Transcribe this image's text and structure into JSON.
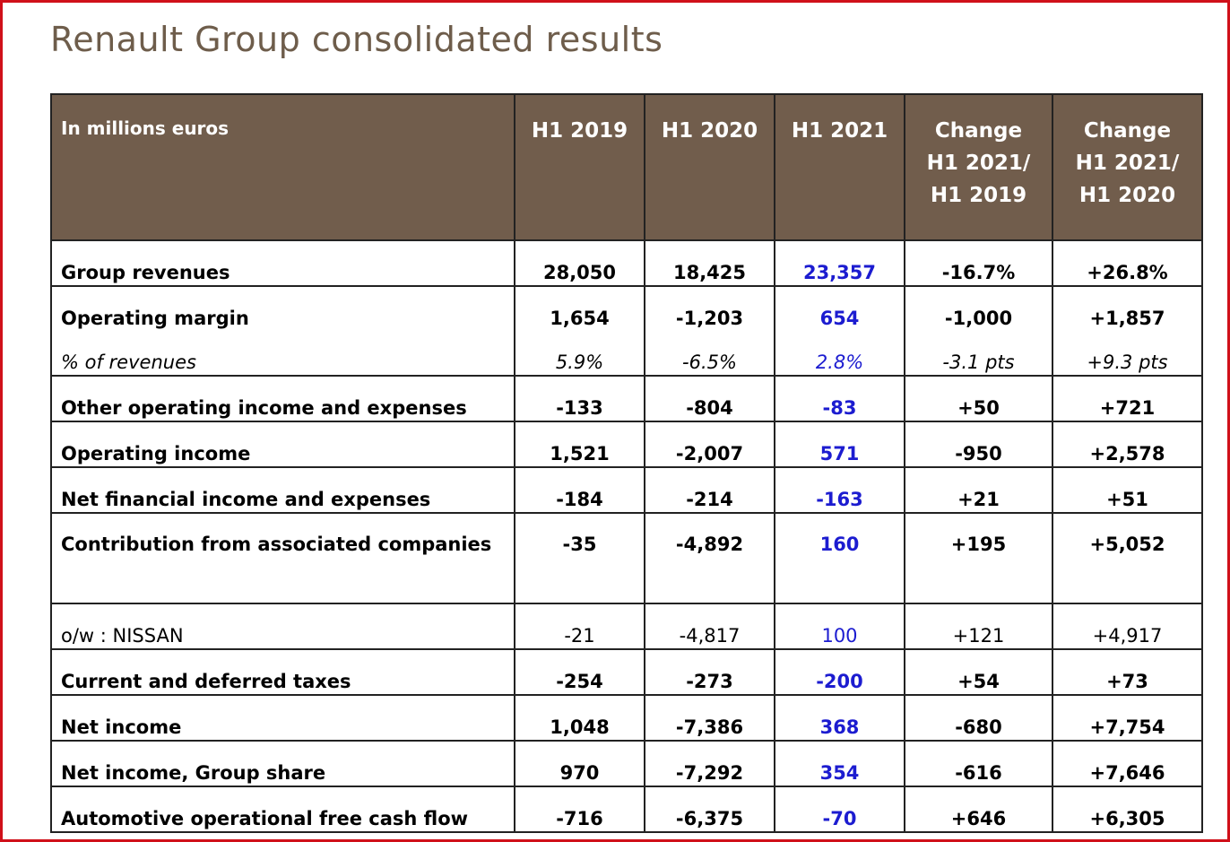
{
  "title": "Renault Group consolidated results",
  "table": {
    "header": [
      [
        "In millions euros"
      ],
      [
        "H1 2019"
      ],
      [
        "H1 2020"
      ],
      [
        "H1 2021"
      ],
      [
        "Change",
        "H1 2021/",
        "H1 2019"
      ],
      [
        "Change",
        "H1 2021/",
        "H1 2020"
      ]
    ],
    "rows": [
      [
        "Group revenues",
        "28,050",
        "18,425",
        "23,357",
        "-16.7%",
        "+26.8%"
      ],
      [
        "Operating margin",
        "1,654",
        "-1,203",
        "654",
        "-1,000",
        "+1,857"
      ],
      [
        "% of revenues",
        "5.9%",
        "-6.5%",
        "2.8%",
        "-3.1 pts",
        "+9.3 pts"
      ],
      [
        "Other operating income and expenses",
        "-133",
        "-804",
        "-83",
        "+50",
        "+721"
      ],
      [
        "Operating income",
        "1,521",
        "-2,007",
        "571",
        "-950",
        "+2,578"
      ],
      [
        "Net financial income and expenses",
        "-184",
        "-214",
        "-163",
        "+21",
        "+51"
      ],
      [
        "Contribution from associated companies",
        "-35",
        "-4,892",
        "160",
        "+195",
        "+5,052"
      ],
      [
        "o/w : NISSAN",
        "-21",
        "-4,817",
        "100",
        "+121",
        "+4,917"
      ],
      [
        "Current and deferred taxes",
        "-254",
        "-273",
        "-200",
        "+54",
        "+73"
      ],
      [
        "Net income",
        "1,048",
        "-7,386",
        "368",
        "-680",
        "+7,754"
      ],
      [
        "Net income, Group share",
        "970",
        "-7,292",
        "354",
        "-616",
        "+7,646"
      ],
      [
        "Automotive operational free cash flow",
        "-716",
        "-6,375",
        "-70",
        "+646",
        "+6,305"
      ]
    ]
  }
}
